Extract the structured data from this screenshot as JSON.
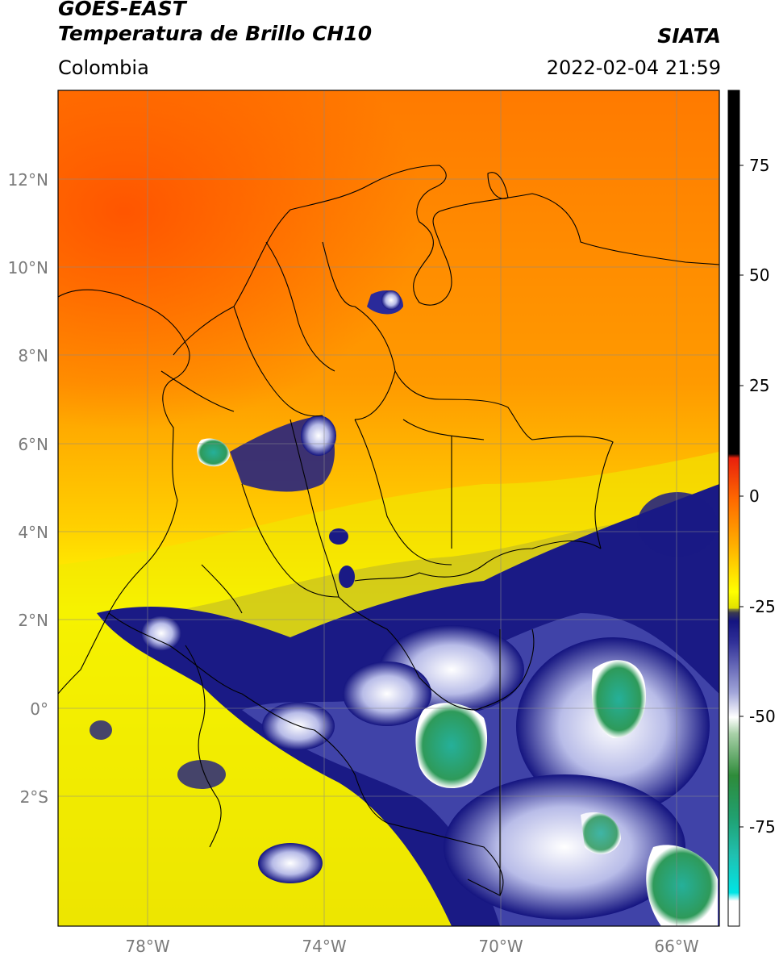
{
  "header": {
    "title_line1": "GOES-EAST",
    "title_line2": "Temperatura de Brillo CH10",
    "region": "Colombia",
    "source": "SIATA",
    "timestamp": "2022-02-04 21:59"
  },
  "map": {
    "lat_labels": [
      "12°N",
      "10°N",
      "8°N",
      "6°N",
      "4°N",
      "2°N",
      "0°",
      "2°S"
    ],
    "lon_labels": [
      "78°W",
      "74°W",
      "70°W",
      "66°W"
    ]
  },
  "colorbar": {
    "tick_labels": [
      "75",
      "50",
      "25",
      "0",
      "-25",
      "-50",
      "-75"
    ],
    "tick_values": [
      75,
      50,
      25,
      0,
      -25,
      -50,
      -75
    ],
    "range": [
      -95,
      90
    ],
    "colors": {
      "black": "#000000",
      "red": "#e8200c",
      "orange": "#ff8c00",
      "yellow": "#ffff00",
      "olive": "#b5b51a",
      "navy": "#141480",
      "white": "#ffffff",
      "green": "#2e8b3a",
      "teal": "#20b2a0",
      "cyan": "#00e5e5"
    }
  }
}
